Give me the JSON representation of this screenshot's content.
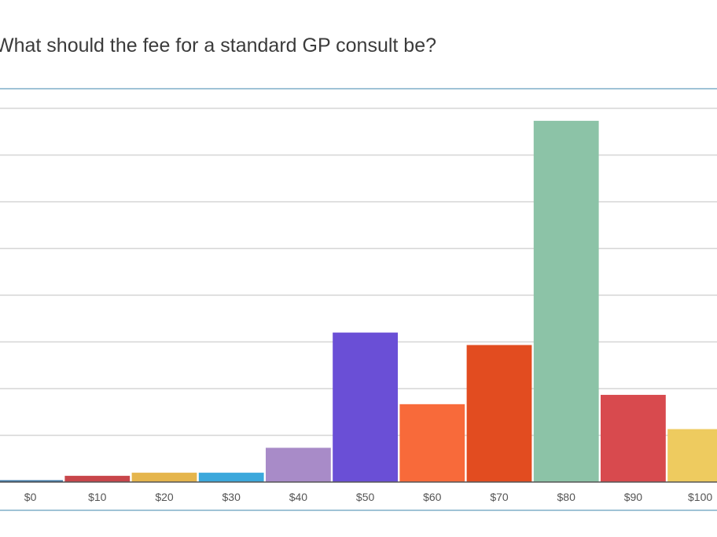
{
  "chart_data": {
    "type": "bar",
    "title": "What should the fee for a standard GP consult be?",
    "categories": [
      "$0",
      "$10",
      "$20",
      "$30",
      "$40",
      "$50",
      "$60",
      "$70",
      "$80",
      "$90",
      "$100"
    ],
    "values": [
      0.3,
      1.0,
      1.5,
      1.5,
      5.5,
      24.0,
      12.5,
      22.0,
      58.0,
      14.0,
      8.5
    ],
    "colors": [
      "#3c78a8",
      "#c8464b",
      "#e5b54c",
      "#3ca8dc",
      "#a88bc8",
      "#6a4fd6",
      "#f86a3a",
      "#e24c20",
      "#8cc3a7",
      "#d84a4e",
      "#eecb5f"
    ],
    "ylim": [
      0,
      60
    ],
    "grid": true,
    "grid_color": "#d6d6d6",
    "frame_color": "#9fc3d6",
    "xlabel": "",
    "ylabel": ""
  }
}
